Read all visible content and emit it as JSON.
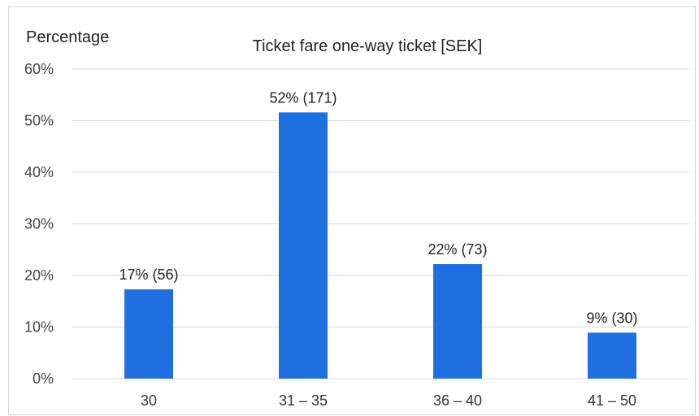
{
  "chart_data": {
    "type": "bar",
    "title": "Ticket fare one-way ticket [SEK]",
    "ylabel": "Percentage",
    "xlabel": "",
    "categories": [
      "30",
      "31 – 35",
      "36 – 40",
      "41 – 50"
    ],
    "values": [
      17.3,
      51.6,
      22.2,
      8.9
    ],
    "data_labels": [
      "17% (56)",
      "52% (171)",
      "22% (73)",
      "9% (30)"
    ],
    "ylim": [
      0,
      60
    ],
    "yticks": [
      "0%",
      "10%",
      "20%",
      "30%",
      "40%",
      "50%",
      "60%"
    ],
    "grid": true,
    "bar_color": "#1f6fe0",
    "grid_color": "#d9d9d9"
  }
}
